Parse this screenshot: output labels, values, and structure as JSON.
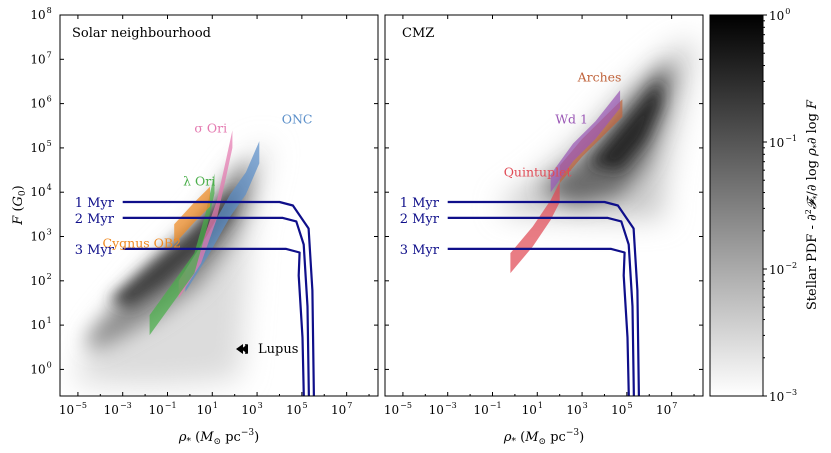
{
  "chart_data": [
    {
      "type": "density",
      "title": "Solar neighbourhood",
      "xlabel": "ρ* (M☉ pc⁻³)",
      "ylabel": "F (G₀)",
      "xscale": "log",
      "yscale": "log",
      "xlim": [
        -5.8,
        8.4
      ],
      "ylim": [
        -0.6,
        8
      ],
      "xticks": [
        -5,
        -3,
        -1,
        1,
        3,
        5,
        7
      ],
      "yticks": [
        0,
        1,
        2,
        3,
        4,
        5,
        6,
        7,
        8
      ],
      "regions": [
        {
          "name": "ONC",
          "color": "#5b8fc9",
          "label_at": [
            4.1,
            5.55
          ],
          "band": [
            [
              -0.2,
              2.0
            ],
            [
              0.8,
              2.8
            ],
            [
              1.8,
              3.7
            ],
            [
              2.5,
              4.2
            ],
            [
              3.1,
              4.9
            ]
          ],
          "width": 0.5
        },
        {
          "name": "σ Ori",
          "color": "#e47ab0",
          "label_at": [
            0.2,
            5.35
          ],
          "band": [
            [
              -0.5,
              1.8
            ],
            [
              0.5,
              2.6
            ],
            [
              1.2,
              3.6
            ],
            [
              1.6,
              4.5
            ],
            [
              1.9,
              5.2
            ]
          ],
          "width": 0.4
        },
        {
          "name": "λ Ori",
          "color": "#4aae4a",
          "label_at": [
            -0.3,
            4.15
          ],
          "band": [
            [
              -1.8,
              1.0
            ],
            [
              -0.8,
              1.7
            ],
            [
              0.2,
              2.4
            ],
            [
              0.7,
              3.3
            ],
            [
              1.1,
              4.2
            ]
          ],
          "width": 0.45
        },
        {
          "name": "Cygnus OB2",
          "color": "#f08a22",
          "label_at": [
            -3.9,
            2.75
          ],
          "band": [
            [
              -0.7,
              3.05
            ],
            [
              0.2,
              3.55
            ],
            [
              0.9,
              3.9
            ]
          ],
          "width": 0.45
        }
      ],
      "annotations": [
        {
          "text": "Lupus",
          "arrow": "left",
          "at": [
            0.9,
            0.6
          ]
        }
      ]
    },
    {
      "type": "density",
      "title": "CMZ",
      "xlabel": "ρ* (M☉ pc⁻³)",
      "xscale": "log",
      "yscale": "log",
      "xlim": [
        -5.8,
        8.4
      ],
      "ylim": [
        -0.6,
        8
      ],
      "xticks": [
        -5,
        -3,
        -1,
        1,
        3,
        5,
        7
      ],
      "regions": [
        {
          "name": "Arches",
          "color": "#c0643c",
          "label_at": [
            2.8,
            6.5
          ],
          "band": [
            [
              2.0,
              4.4
            ],
            [
              3.0,
              5.0
            ],
            [
              4.0,
              5.5
            ],
            [
              4.8,
              5.9
            ]
          ],
          "width": 0.4
        },
        {
          "name": "Wd 1",
          "color": "#9b59b6",
          "label_at": [
            1.8,
            5.55
          ],
          "band": [
            [
              1.6,
              4.2
            ],
            [
              2.6,
              4.9
            ],
            [
              3.6,
              5.4
            ],
            [
              4.7,
              6.1
            ]
          ],
          "width": 0.4
        },
        {
          "name": "Quintuplet",
          "color": "#e04a55",
          "label_at": [
            -0.5,
            4.35
          ],
          "band": [
            [
              -0.2,
              2.4
            ],
            [
              0.8,
              3.0
            ],
            [
              1.6,
              3.6
            ],
            [
              2.0,
              4.0
            ]
          ],
          "width": 0.45
        }
      ]
    }
  ],
  "tracks": [
    {
      "label": "1 Myr",
      "logF": 3.78
    },
    {
      "label": "2 Myr",
      "logF": 3.42
    },
    {
      "label": "3 Myr",
      "logF": 2.72
    }
  ],
  "colorbar": {
    "label": "Stellar PDF - ∂²𝓕*/∂log ρ* ∂log F",
    "scale": "log",
    "range": [
      -3,
      0
    ],
    "ticks": [
      {
        "value": 0,
        "label": "10"
      },
      {
        "value": -1,
        "label": "10"
      },
      {
        "value": -2,
        "label": "10"
      },
      {
        "value": -3,
        "label": "10"
      }
    ],
    "tick_exponents": [
      "0",
      "−1",
      "−2",
      "−3"
    ],
    "cmap": [
      "#ffffff",
      "#000000"
    ]
  }
}
